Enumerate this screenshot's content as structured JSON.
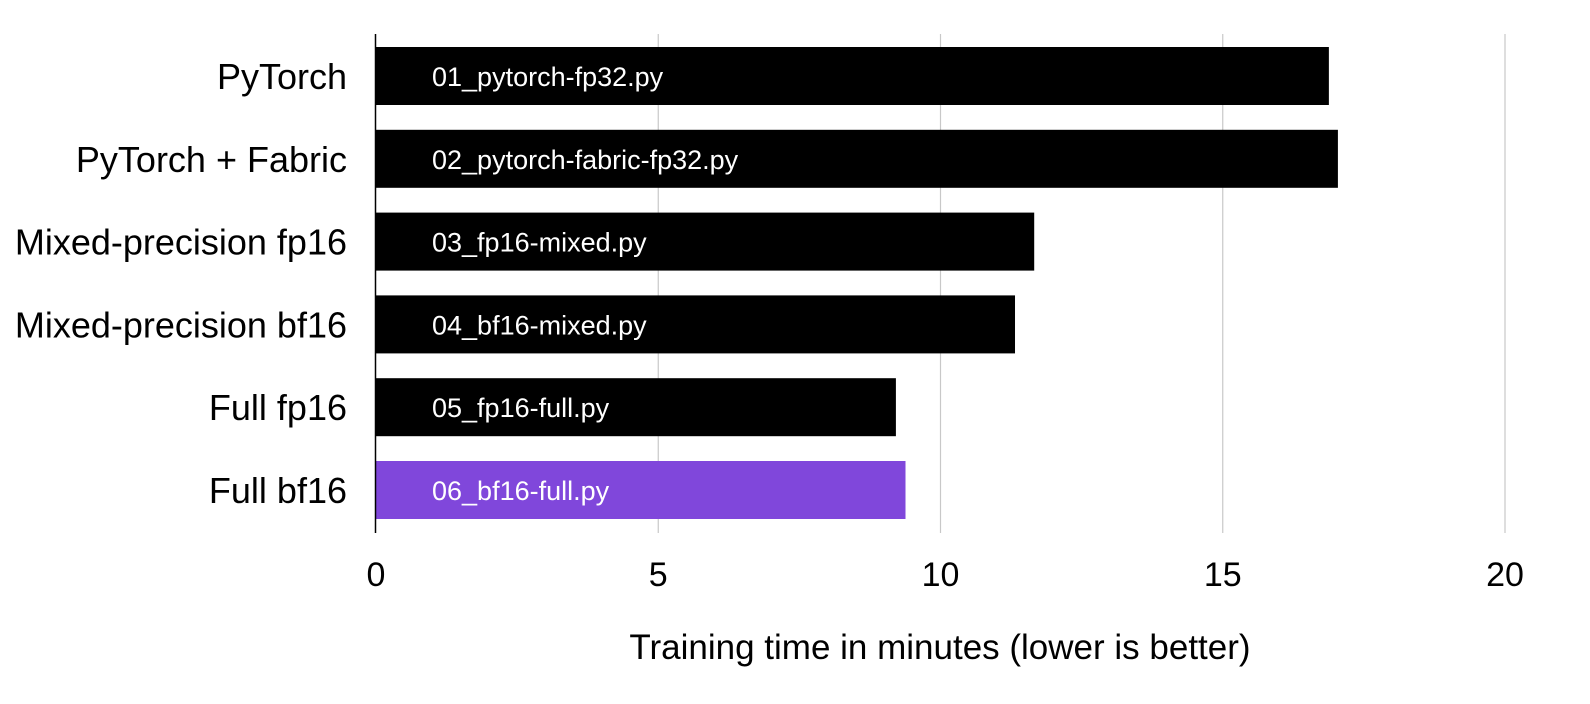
{
  "chart_data": {
    "type": "bar",
    "orientation": "horizontal",
    "title": "",
    "xlabel": "Training time in minutes (lower is better)",
    "ylabel": "",
    "xlim": [
      0,
      20
    ],
    "x_ticks": [
      0,
      5,
      10,
      15,
      20
    ],
    "x_tick_labels": [
      "0",
      "5",
      "10",
      "15",
      "20"
    ],
    "grid": "vertical",
    "legend": "none",
    "categories": [
      "PyTorch",
      "PyTorch + Fabric",
      "Mixed-precision fp16",
      "Mixed-precision bf16",
      "Full fp16",
      "Full bf16"
    ],
    "values": [
      16.88,
      17.04,
      11.66,
      11.32,
      9.21,
      9.38
    ],
    "bar_labels": [
      "01_pytorch-fp32.py",
      "02_pytorch-fabric-fp32.py",
      "03_fp16-mixed.py",
      "04_bf16-mixed.py",
      "05_fp16-full.py",
      "06_bf16-full.py"
    ],
    "bar_colors": [
      "#000000",
      "#000000",
      "#000000",
      "#000000",
      "#000000",
      "#8047DB"
    ],
    "highlight_color": "#8047DB",
    "default_color": "#000000",
    "grid_color": "#c8c8c8"
  }
}
